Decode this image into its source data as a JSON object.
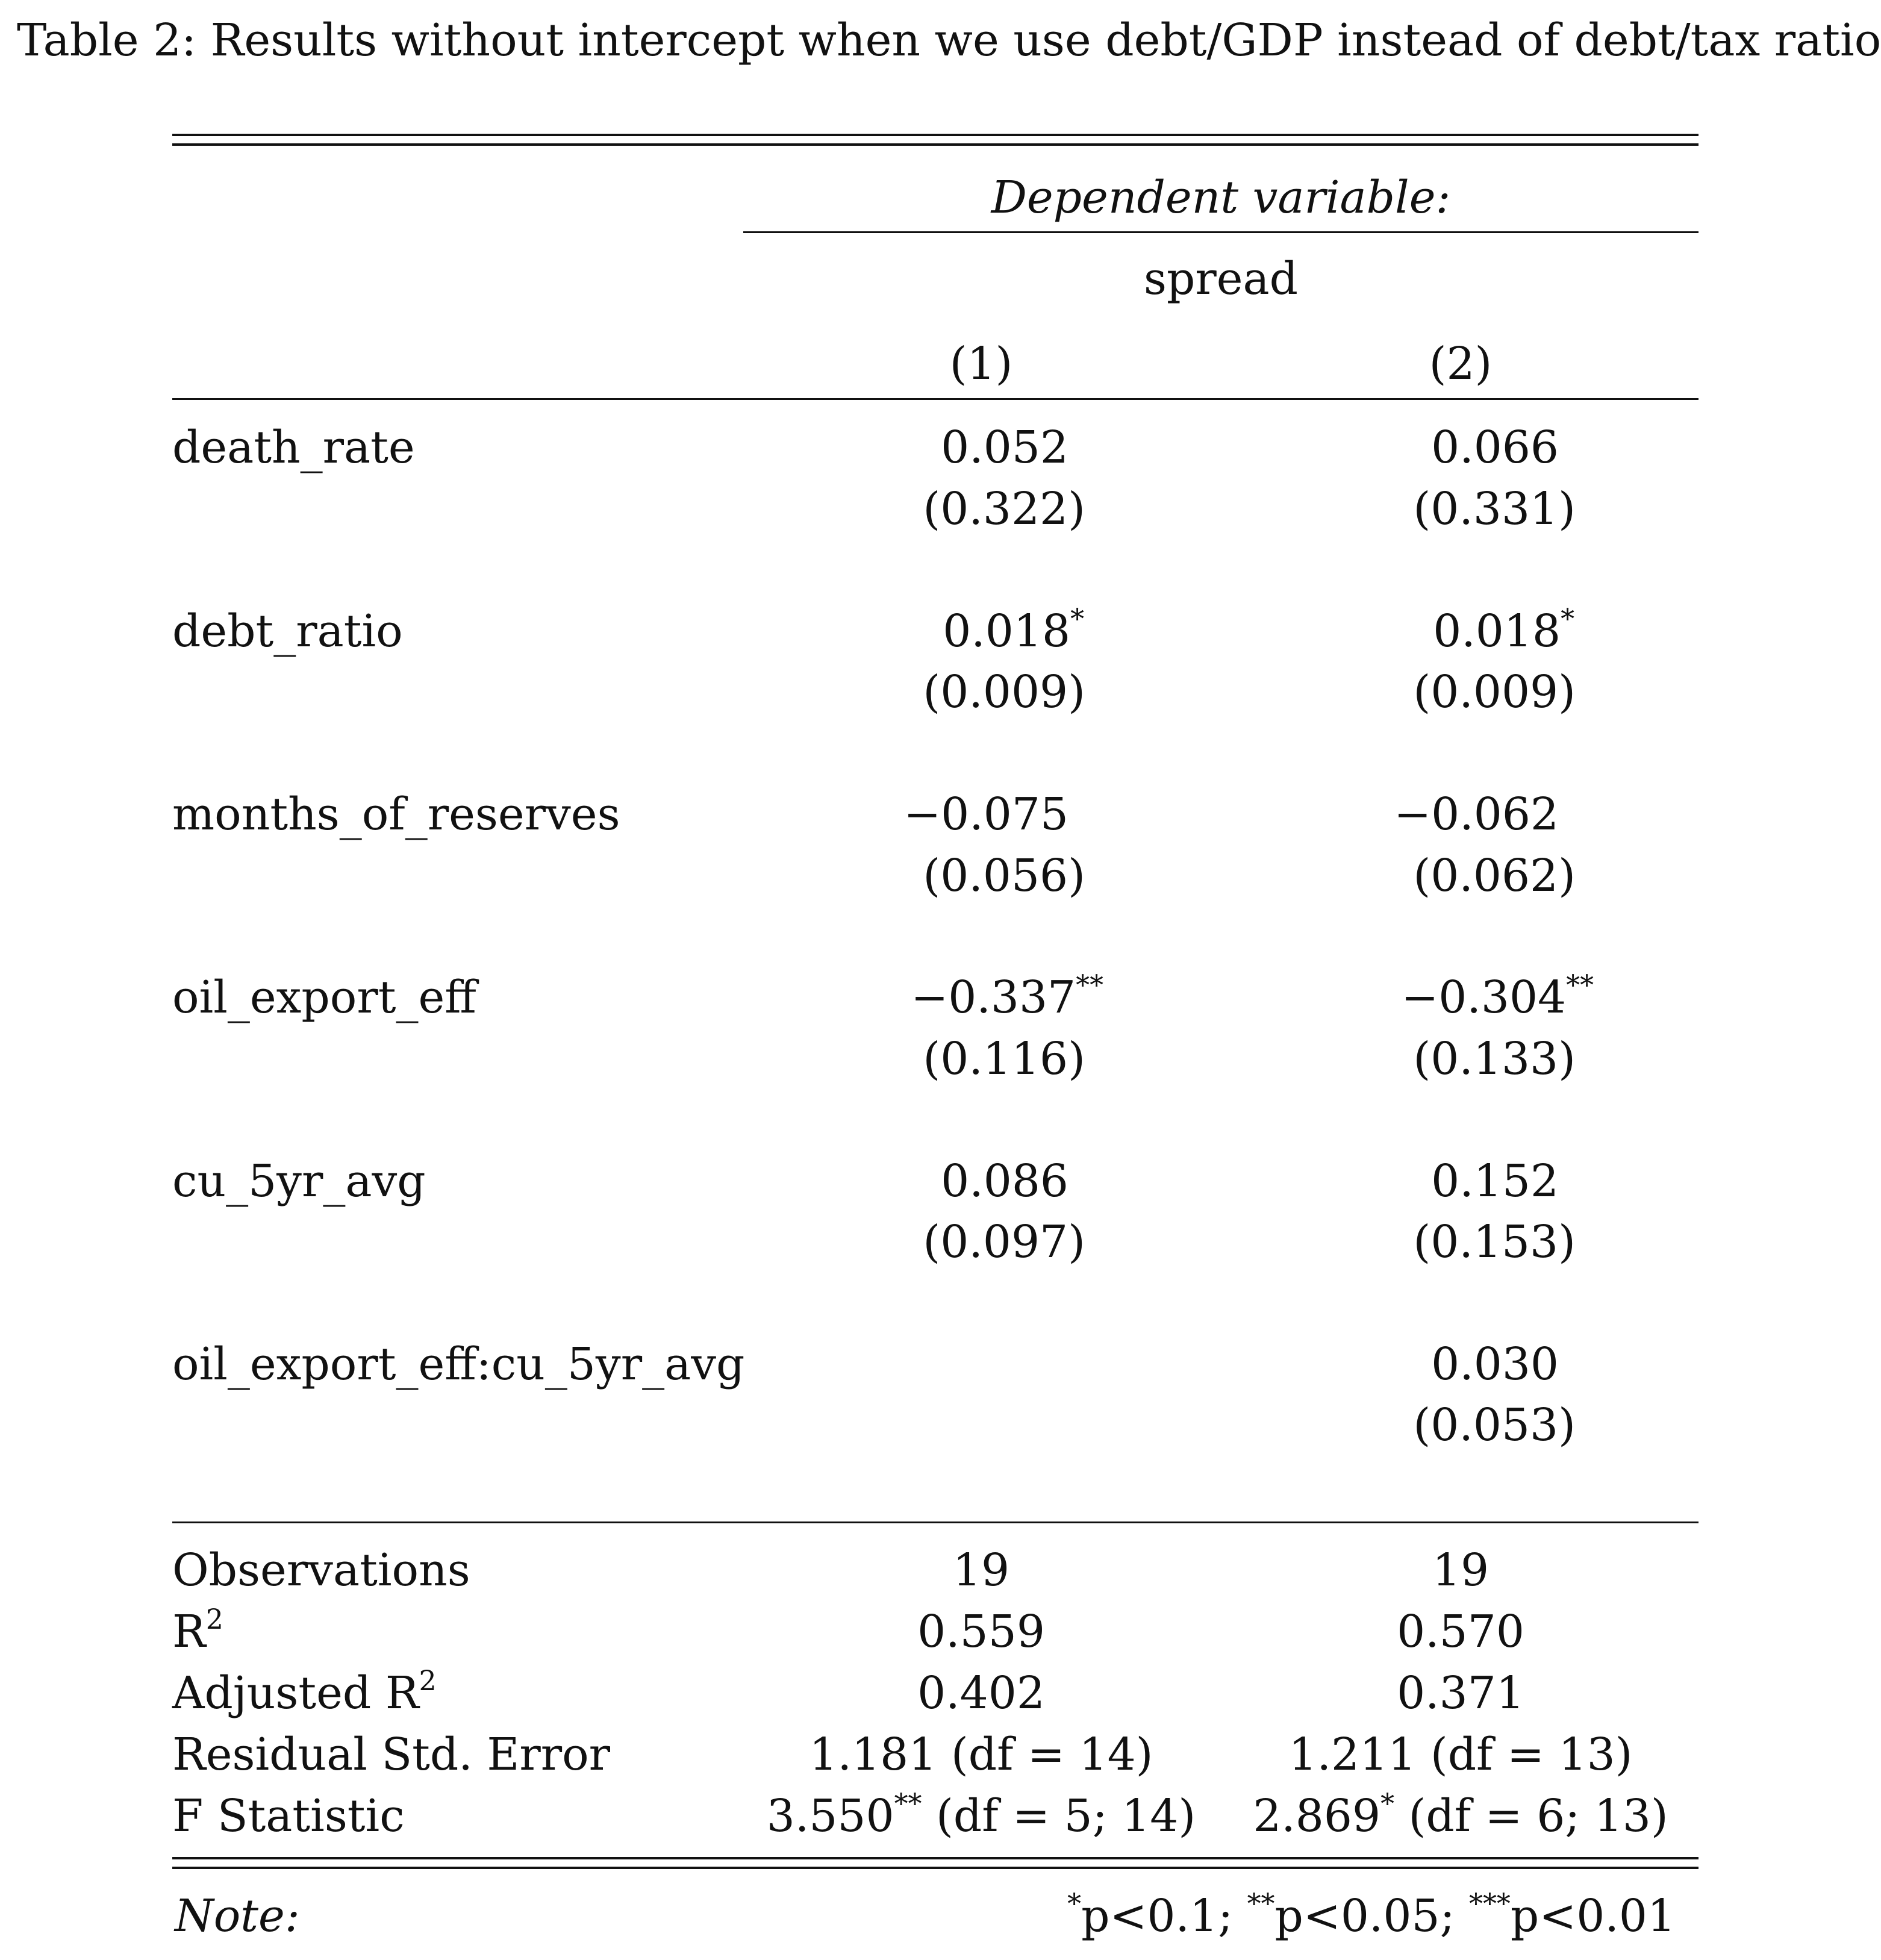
{
  "caption": "Table 2: Results without intercept when we use debt/GDP instead of debt/tax ratio",
  "header": {
    "dependent_variable_label": "Dependent variable:",
    "dependent_variable": "spread",
    "columns": [
      "(1)",
      "(2)"
    ]
  },
  "rows": [
    {
      "name": "death_rate",
      "col1": {
        "coef": "0.052",
        "stars": "",
        "se": "(0.322)"
      },
      "col2": {
        "coef": "0.066",
        "stars": "",
        "se": "(0.331)"
      }
    },
    {
      "name": "debt_ratio",
      "col1": {
        "coef": "0.018",
        "stars": "*",
        "se": "(0.009)"
      },
      "col2": {
        "coef": "0.018",
        "stars": "*",
        "se": "(0.009)"
      }
    },
    {
      "name": "months_of_reserves",
      "col1": {
        "coef": "−0.075",
        "stars": "",
        "se": "(0.056)"
      },
      "col2": {
        "coef": "−0.062",
        "stars": "",
        "se": "(0.062)"
      }
    },
    {
      "name": "oil_export_eff",
      "col1": {
        "coef": "−0.337",
        "stars": "**",
        "se": "(0.116)"
      },
      "col2": {
        "coef": "−0.304",
        "stars": "**",
        "se": "(0.133)"
      }
    },
    {
      "name": "cu_5yr_avg",
      "col1": {
        "coef": "0.086",
        "stars": "",
        "se": "(0.097)"
      },
      "col2": {
        "coef": "0.152",
        "stars": "",
        "se": "(0.153)"
      }
    },
    {
      "name": "oil_export_eff:cu_5yr_avg",
      "col1": {
        "coef": "",
        "stars": "",
        "se": ""
      },
      "col2": {
        "coef": "0.030",
        "stars": "",
        "se": "(0.053)"
      }
    }
  ],
  "stats": {
    "observations": {
      "label": "Observations",
      "col1": "19",
      "col2": "19"
    },
    "r2": {
      "label": "R",
      "sup": "2",
      "col1": "0.559",
      "col2": "0.570"
    },
    "adj_r2": {
      "label": "Adjusted R",
      "sup": "2",
      "col1": "0.402",
      "col2": "0.371"
    },
    "rse": {
      "label": "Residual Std. Error",
      "col1": "1.181 (df = 14)",
      "col2": "1.211 (df = 13)"
    },
    "f_stat": {
      "label": "F Statistic",
      "col1_value": "3.550",
      "col1_stars": "**",
      "col1_df": " (df = 5; 14)",
      "col2_value": "2.869",
      "col2_stars": "*",
      "col2_df": " (df = 6; 13)"
    }
  },
  "note": {
    "label": "Note:",
    "s1": "*",
    "t1": "p<0.1; ",
    "s2": "**",
    "t2": "p<0.05; ",
    "s3": "***",
    "t3": "p<0.01"
  }
}
